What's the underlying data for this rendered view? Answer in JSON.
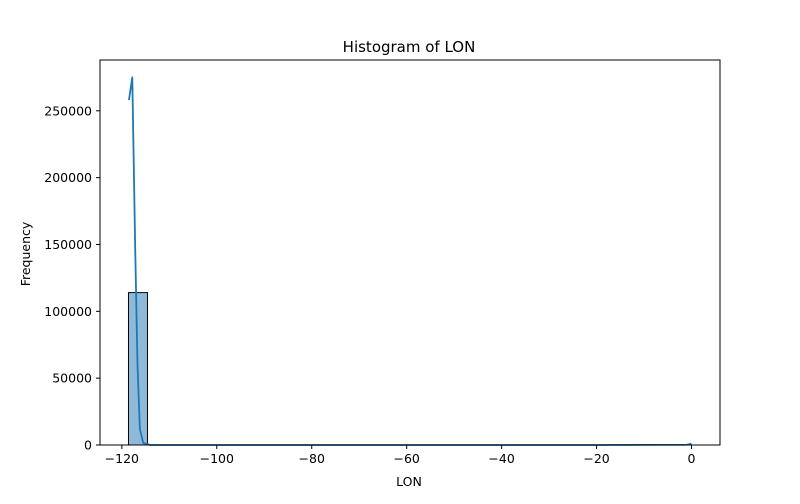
{
  "chart_data": {
    "type": "bar",
    "title": "Histogram of LON",
    "xlabel": "LON",
    "ylabel": "Frequency",
    "xlim": [
      -124.6,
      6.0
    ],
    "ylim": [
      0,
      288000
    ],
    "x_ticks": [
      -120,
      -100,
      -80,
      -60,
      -40,
      -20,
      0
    ],
    "x_tick_labels": [
      "−120",
      "−100",
      "−80",
      "−60",
      "−40",
      "−20",
      "0"
    ],
    "y_ticks": [
      0,
      50000,
      100000,
      150000,
      200000,
      250000
    ],
    "y_tick_labels": [
      "0",
      "50000",
      "100000",
      "150000",
      "200000",
      "250000"
    ],
    "grid": false,
    "bins": [
      {
        "x0": -118.6,
        "x1": -114.6,
        "value": 114000
      },
      {
        "x0": -114.6,
        "x1": -110.6,
        "value": 0
      },
      {
        "x0": -110.6,
        "x1": -106.6,
        "value": 0
      },
      {
        "x0": -106.6,
        "x1": -102.6,
        "value": 0
      },
      {
        "x0": -102.6,
        "x1": -98.6,
        "value": 0
      },
      {
        "x0": -98.6,
        "x1": -94.6,
        "value": 0
      },
      {
        "x0": -94.6,
        "x1": -90.6,
        "value": 0
      },
      {
        "x0": -90.6,
        "x1": -86.6,
        "value": 0
      },
      {
        "x0": -86.6,
        "x1": -82.6,
        "value": 0
      },
      {
        "x0": -82.6,
        "x1": -78.6,
        "value": 0
      },
      {
        "x0": -78.6,
        "x1": -74.6,
        "value": 0
      },
      {
        "x0": -74.6,
        "x1": -70.6,
        "value": 0
      },
      {
        "x0": -70.6,
        "x1": -66.6,
        "value": 0
      },
      {
        "x0": -66.6,
        "x1": -62.6,
        "value": 0
      },
      {
        "x0": -62.6,
        "x1": -58.6,
        "value": 0
      },
      {
        "x0": -58.6,
        "x1": -54.6,
        "value": 0
      },
      {
        "x0": -54.6,
        "x1": -50.6,
        "value": 0
      },
      {
        "x0": -50.6,
        "x1": -46.6,
        "value": 0
      },
      {
        "x0": -46.6,
        "x1": -42.6,
        "value": 0
      },
      {
        "x0": -42.6,
        "x1": -38.6,
        "value": 0
      },
      {
        "x0": -38.6,
        "x1": -34.6,
        "value": 0
      },
      {
        "x0": -34.6,
        "x1": -30.6,
        "value": 0
      },
      {
        "x0": -30.6,
        "x1": -26.6,
        "value": 0
      },
      {
        "x0": -26.6,
        "x1": -22.6,
        "value": 0
      },
      {
        "x0": -22.6,
        "x1": -18.6,
        "value": 0
      },
      {
        "x0": -18.6,
        "x1": -14.6,
        "value": 0
      },
      {
        "x0": -14.6,
        "x1": -10.6,
        "value": 0
      },
      {
        "x0": -10.6,
        "x1": -6.6,
        "value": 0
      },
      {
        "x0": -6.6,
        "x1": -2.6,
        "value": 0
      },
      {
        "x0": -2.6,
        "x1": 0.0,
        "value": 0
      }
    ],
    "kde_points": [
      {
        "x": -118.5,
        "y": 258000
      },
      {
        "x": -117.8,
        "y": 275000
      },
      {
        "x": -117.2,
        "y": 150000
      },
      {
        "x": -116.7,
        "y": 60000
      },
      {
        "x": -116.2,
        "y": 12000
      },
      {
        "x": -115.5,
        "y": 1500
      },
      {
        "x": -114.0,
        "y": 0
      },
      {
        "x": -100.0,
        "y": 0
      },
      {
        "x": -60.0,
        "y": 0
      },
      {
        "x": -20.0,
        "y": 0
      },
      {
        "x": -1.0,
        "y": 200
      },
      {
        "x": 0.0,
        "y": 900
      }
    ],
    "colors": {
      "bar_fill": "#8ebad9",
      "bar_edge": "#000000",
      "kde_line": "#1f77b4",
      "axis": "#000000"
    }
  }
}
